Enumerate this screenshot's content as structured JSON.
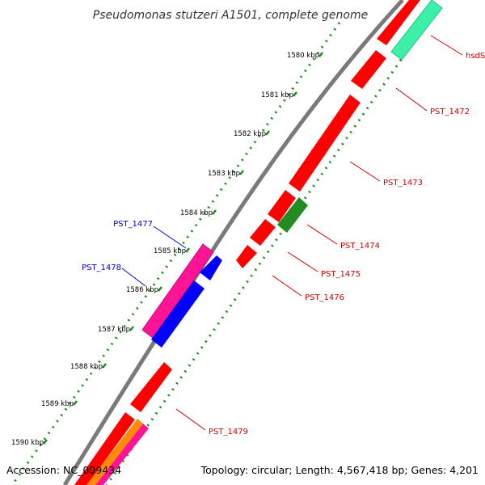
{
  "title": "Pseudomonas stutzeri A1501, complete genome",
  "accession": "Accession: NC_009434",
  "summary": "Topology: circular; Length: 4,567,418 bp; Genes: 4,201",
  "ticks": [
    {
      "label": "1580 kbp"
    },
    {
      "label": "1581 kbp"
    },
    {
      "label": "1582 kbp"
    },
    {
      "label": "1583 kbp"
    },
    {
      "label": "1584 kbp"
    },
    {
      "label": "1585 kbp"
    },
    {
      "label": "1586 kbp"
    },
    {
      "label": "1587 kbp"
    },
    {
      "label": "1588 kbp"
    },
    {
      "label": "1589 kbp"
    },
    {
      "label": "1590 kbp"
    }
  ],
  "gene_labels": [
    {
      "label": "hsdS",
      "color": "#cc0000"
    },
    {
      "label": "PST_1472",
      "color": "#cc0000"
    },
    {
      "label": "PST_1473",
      "color": "#cc0000"
    },
    {
      "label": "PST_1474",
      "color": "#cc0000"
    },
    {
      "label": "PST_1475",
      "color": "#cc0000"
    },
    {
      "label": "PST_1476",
      "color": "#cc0000"
    },
    {
      "label": "PST_1477",
      "color": "#0000cc"
    },
    {
      "label": "PST_1478",
      "color": "#0000cc"
    },
    {
      "label": "PST_1479",
      "color": "#cc0000"
    }
  ],
  "colors": {
    "backbone": "#7a7a7a",
    "forward_gene": "#ff0000",
    "green_gene": "#228b22",
    "teal_gene": "#3cf0a8",
    "magenta_gene": "#ff1493",
    "blue_gene": "#0000ff",
    "orange_gene": "#ff8c00",
    "tick_dots": "#1a8c1a"
  }
}
